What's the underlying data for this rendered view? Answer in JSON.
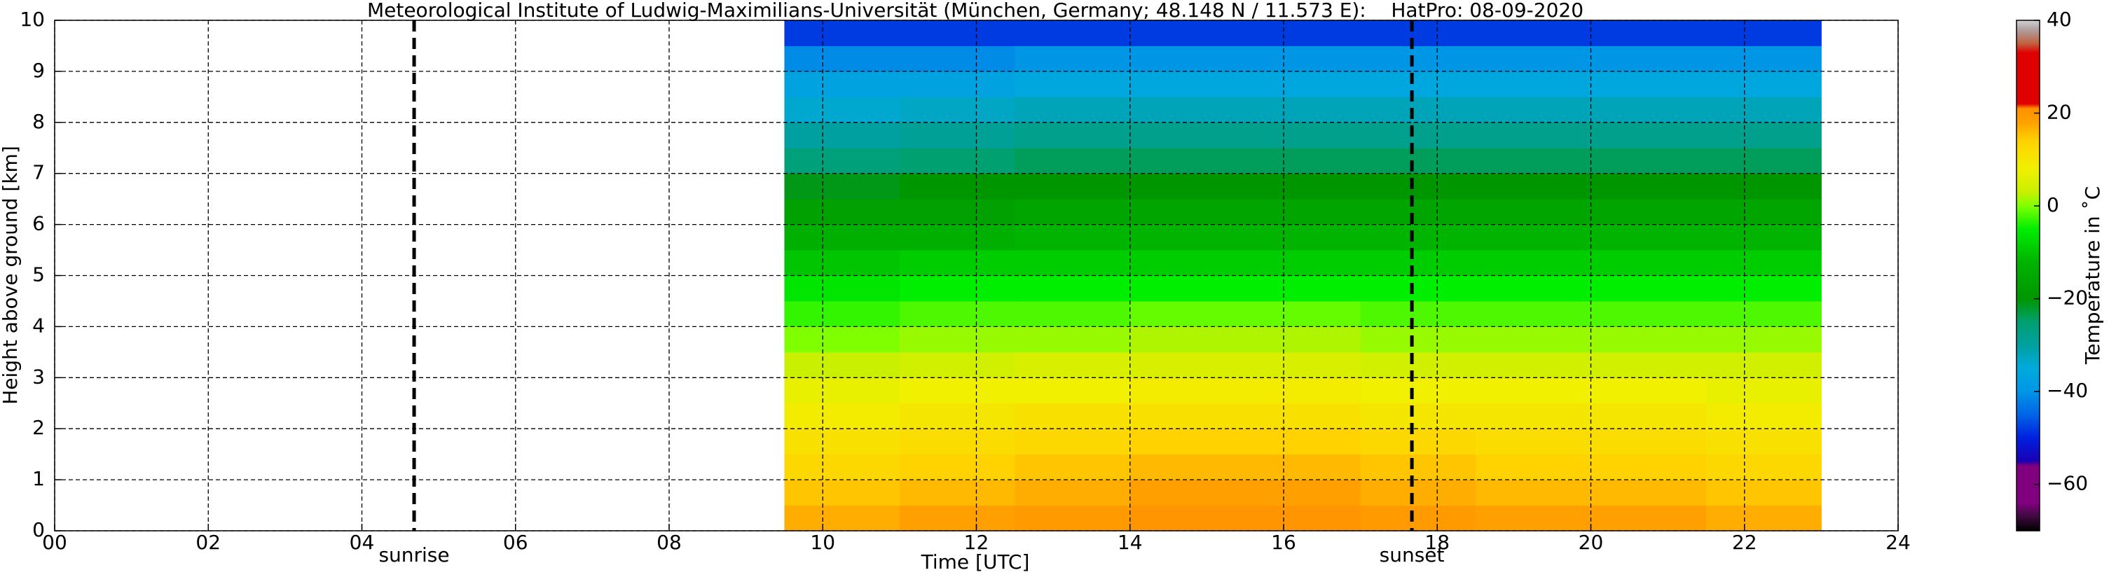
{
  "chart_data": {
    "type": "heatmap",
    "title": "Meteorological Institute of Ludwig-Maximilians-Universität (München, Germany; 48.148 N / 11.573 E):    HatPro: 08-09-2020",
    "x_label": "Time [UTC]",
    "y_label": "Height above ground [km]",
    "colorbar_label": "Temperature in ˚C",
    "xlim": [
      0,
      24
    ],
    "xticks": [
      {
        "value": 0,
        "label": "00"
      },
      {
        "value": 2,
        "label": "02"
      },
      {
        "value": 4,
        "label": "04"
      },
      {
        "value": 6,
        "label": "06"
      },
      {
        "value": 8,
        "label": "08"
      },
      10,
      12,
      14,
      16,
      18,
      20,
      22,
      24
    ],
    "ylim": [
      0,
      10
    ],
    "yticks": [
      0,
      1,
      2,
      3,
      4,
      5,
      6,
      7,
      8,
      9,
      10
    ],
    "grid": true,
    "clim": [
      -70,
      40
    ],
    "cticks": [
      {
        "value": -60,
        "label": "−60"
      },
      {
        "value": -40,
        "label": "−40"
      },
      {
        "value": -20,
        "label": "−20"
      },
      0,
      20,
      40
    ],
    "colormap": [
      {
        "value": -70,
        "color": "#000000"
      },
      {
        "value": -67,
        "color": "#3c0a3c"
      },
      {
        "value": -64,
        "color": "#800080"
      },
      {
        "value": -56,
        "color": "#800080"
      },
      {
        "value": -55,
        "color": "#1a00b4"
      },
      {
        "value": -50,
        "color": "#0020e0"
      },
      {
        "value": -45,
        "color": "#0064e6"
      },
      {
        "value": -40,
        "color": "#0096e6"
      },
      {
        "value": -35,
        "color": "#00aadc"
      },
      {
        "value": -30,
        "color": "#00a0a0"
      },
      {
        "value": -25,
        "color": "#00a070"
      },
      {
        "value": -20,
        "color": "#009600"
      },
      {
        "value": -12,
        "color": "#00b400"
      },
      {
        "value": -5,
        "color": "#00ee00"
      },
      {
        "value": 0,
        "color": "#80ff00"
      },
      {
        "value": 3,
        "color": "#c8f000"
      },
      {
        "value": 8,
        "color": "#f0f000"
      },
      {
        "value": 14,
        "color": "#ffd200"
      },
      {
        "value": 18,
        "color": "#ffa000"
      },
      {
        "value": 21,
        "color": "#ff9000"
      },
      {
        "value": 22,
        "color": "#e00000"
      },
      {
        "value": 33,
        "color": "#e00000"
      },
      {
        "value": 35,
        "color": "#c06040"
      },
      {
        "value": 38,
        "color": "#b0a0a0"
      },
      {
        "value": 40,
        "color": "#d0d0d0"
      }
    ],
    "x_edges": [
      9.5,
      11,
      12.5,
      14,
      15.5,
      17,
      18.5,
      20,
      21.5,
      23
    ],
    "y_edges": [
      0,
      0.5,
      1,
      1.5,
      2,
      2.5,
      3,
      3.5,
      4,
      4.5,
      5,
      5.5,
      6,
      6.5,
      7,
      7.5,
      8,
      8.5,
      9,
      9.5,
      10
    ],
    "z": [
      [
        17,
        18,
        19,
        20,
        20,
        19,
        18,
        18,
        17
      ],
      [
        15,
        16,
        17,
        18,
        18,
        17,
        16,
        16,
        15
      ],
      [
        13,
        14,
        15,
        16,
        16,
        15,
        14,
        14,
        13
      ],
      [
        11,
        12,
        13,
        14,
        14,
        13,
        12,
        12,
        11
      ],
      [
        9,
        10,
        11,
        11,
        11,
        10,
        10,
        10,
        9
      ],
      [
        7,
        8,
        8,
        9,
        9,
        8,
        8,
        8,
        7
      ],
      [
        3,
        4,
        5,
        5,
        5,
        4,
        4,
        4,
        4
      ],
      [
        0,
        1,
        1,
        2,
        2,
        1,
        1,
        1,
        1
      ],
      [
        -3,
        -2,
        -2,
        -1,
        -1,
        -2,
        -2,
        -2,
        -2
      ],
      [
        -6,
        -5,
        -5,
        -5,
        -5,
        -5,
        -5,
        -5,
        -5
      ],
      [
        -10,
        -9,
        -9,
        -9,
        -9,
        -9,
        -9,
        -9,
        -9
      ],
      [
        -13,
        -13,
        -12,
        -12,
        -12,
        -12,
        -12,
        -12,
        -12
      ],
      [
        -17,
        -17,
        -16,
        -16,
        -16,
        -16,
        -16,
        -16,
        -16
      ],
      [
        -21,
        -20,
        -20,
        -20,
        -20,
        -20,
        -20,
        -20,
        -20
      ],
      [
        -26,
        -25,
        -24,
        -24,
        -24,
        -24,
        -24,
        -24,
        -24
      ],
      [
        -30,
        -29,
        -28,
        -28,
        -28,
        -28,
        -28,
        -28,
        -28
      ],
      [
        -34,
        -33,
        -32,
        -32,
        -32,
        -32,
        -32,
        -32,
        -32
      ],
      [
        -37,
        -37,
        -36,
        -36,
        -36,
        -36,
        -36,
        -36,
        -36
      ],
      [
        -41,
        -41,
        -40,
        -40,
        -40,
        -40,
        -40,
        -40,
        -40
      ],
      [
        -48,
        -48,
        -48,
        -48,
        -48,
        -48,
        -48,
        -48,
        -48
      ]
    ],
    "annotations": [
      {
        "x": 4.68,
        "label": "sunrise"
      },
      {
        "x": 17.67,
        "label": "sunset"
      }
    ]
  }
}
